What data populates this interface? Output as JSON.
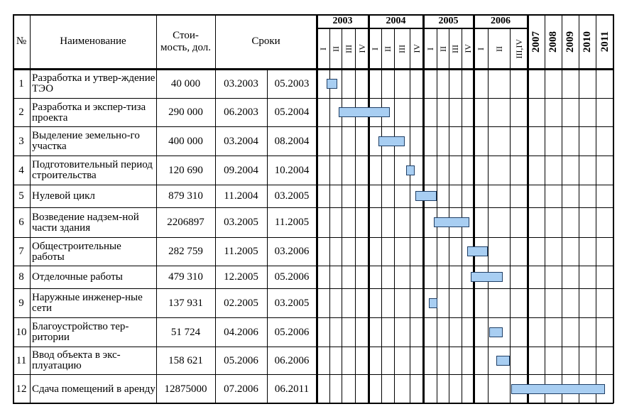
{
  "table": {
    "headers": {
      "num": "№",
      "name": "Наименование",
      "cost_line1": "Стои-",
      "cost_line2": "мость, дол.",
      "terms": "Сроки"
    },
    "years": [
      {
        "label": "2003",
        "quarters": [
          "I",
          "II",
          "III",
          "IV"
        ]
      },
      {
        "label": "2004",
        "quarters": [
          "I",
          "II",
          "III",
          "IV"
        ]
      },
      {
        "label": "2005",
        "quarters": [
          "I",
          "II",
          "III",
          "IV"
        ]
      },
      {
        "label": "2006",
        "quarters": [
          "I",
          "II",
          "III,IV"
        ]
      }
    ],
    "later_years": [
      "2007",
      "2008",
      "2009",
      "2010",
      "2011"
    ],
    "rows": [
      {
        "num": "1",
        "name": "Разработка и утвер-ждение ТЭО",
        "cost": "40 000",
        "start": "03.2003",
        "end": "05.2003"
      },
      {
        "num": "2",
        "name": "Разработка и экспер-тиза проекта",
        "cost": "290 000",
        "start": "06.2003",
        "end": "05.2004"
      },
      {
        "num": "3",
        "name": "Выделение земельно-го участка",
        "cost": "400 000",
        "start": "03.2004",
        "end": "08.2004"
      },
      {
        "num": "4",
        "name": "Подготовительный период строительства",
        "cost": "120 690",
        "start": "09.2004",
        "end": "10.2004"
      },
      {
        "num": "5",
        "name": "Нулевой цикл",
        "cost": "879 310",
        "start": "11.2004",
        "end": "03.2005"
      },
      {
        "num": "6",
        "name": "Возведение надзем-ной части здания",
        "cost": "2206897",
        "start": "03.2005",
        "end": "11.2005"
      },
      {
        "num": "7",
        "name": "Общестроительные работы",
        "cost": "282 759",
        "start": "11.2005",
        "end": "03.2006"
      },
      {
        "num": "8",
        "name": "Отделочные работы",
        "cost": "479 310",
        "start": "12.2005",
        "end": "05.2006"
      },
      {
        "num": "9",
        "name": "Наружные инженер-ные сети",
        "cost": "137 931",
        "start": "02.2005",
        "end": "03.2005"
      },
      {
        "num": "10",
        "name": "Благоустройство тер-ритории",
        "cost": "51 724",
        "start": "04.2006",
        "end": "05.2006"
      },
      {
        "num": "11",
        "name": "Ввод объекта в экс-плуатацию",
        "cost": "158 621",
        "start": "05.2006",
        "end": "06.2006"
      },
      {
        "num": "12",
        "name": "Сдача помещений в аренду",
        "cost": "12875000",
        "start": "07.2006",
        "end": "06.2011"
      }
    ]
  },
  "colors": {
    "bar_fill": "#a8cef2",
    "bar_border": "#1f3f66",
    "grid": "#000000"
  }
}
